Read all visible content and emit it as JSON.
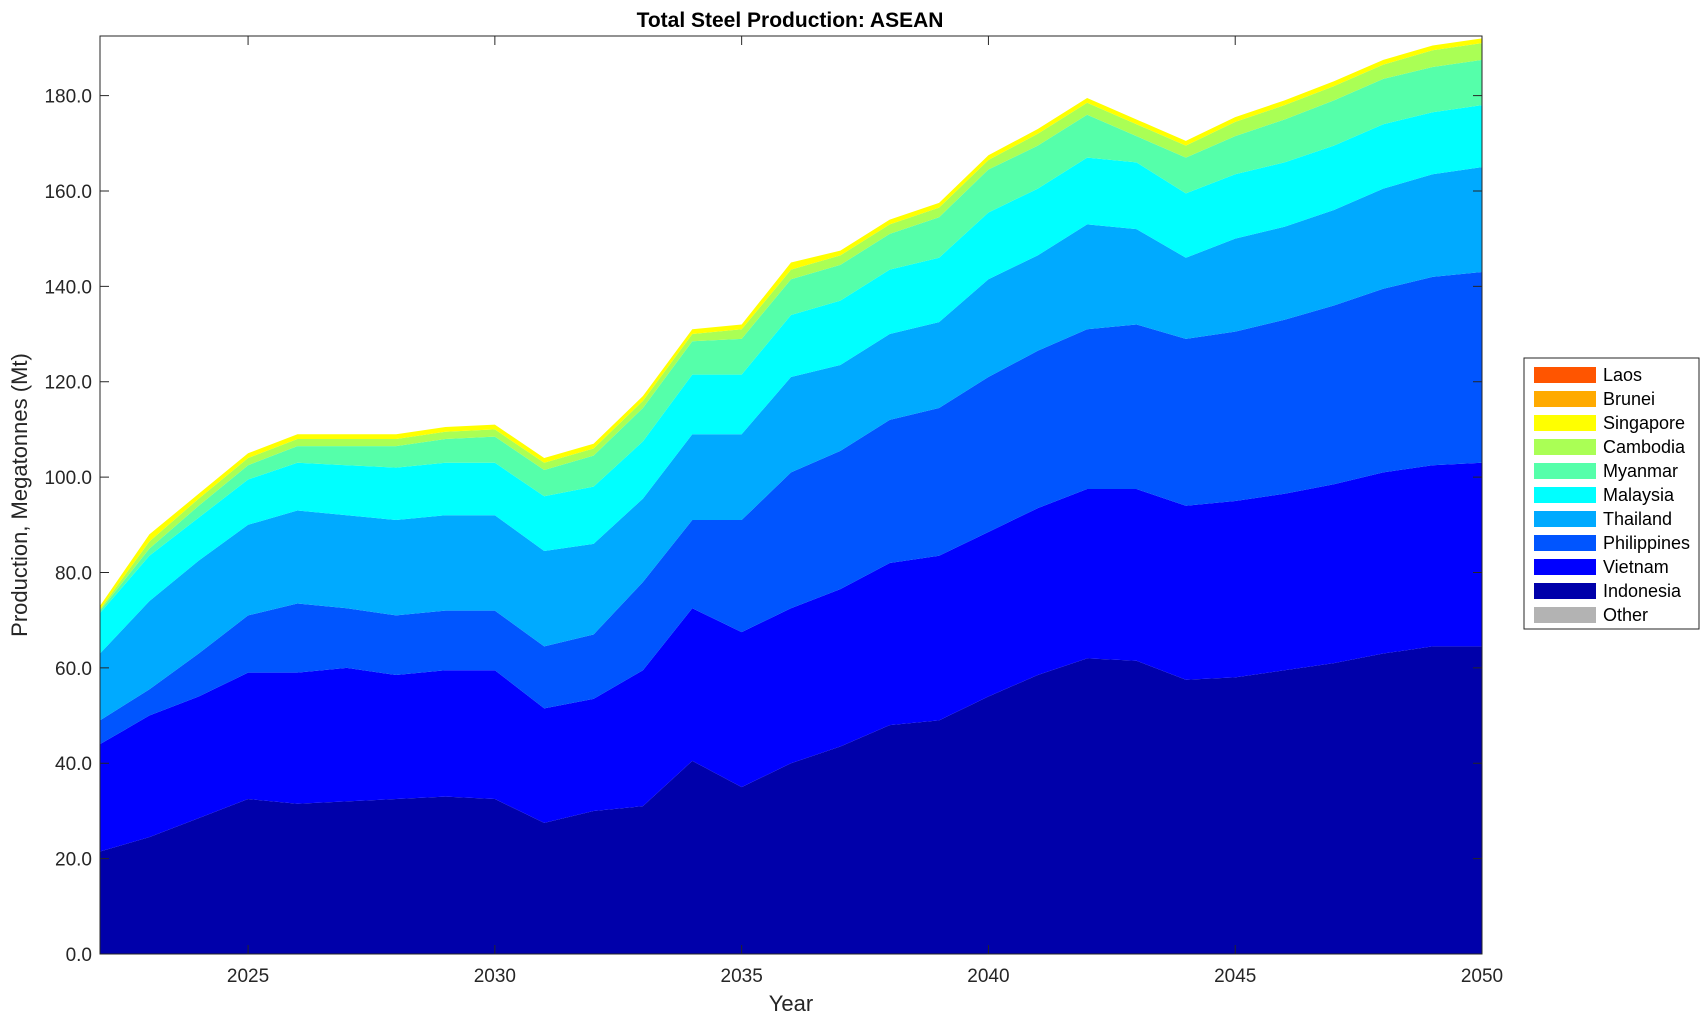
{
  "chart_data": {
    "type": "area",
    "stacked": true,
    "title": "Total Steel Production: ASEAN",
    "xlabel": "Year",
    "ylabel": "Production, Megatonnes (Mt)",
    "xlim": [
      2022,
      2050
    ],
    "ylim": [
      0,
      192.5
    ],
    "xticks": [
      "2025",
      "2030",
      "2035",
      "2040",
      "2045",
      "2050"
    ],
    "xtick_values": [
      2025,
      2030,
      2035,
      2040,
      2045,
      2050
    ],
    "yticks": [
      "0.0",
      "20.0",
      "40.0",
      "60.0",
      "80.0",
      "100.0",
      "120.0",
      "140.0",
      "160.0",
      "180.0"
    ],
    "ytick_values": [
      0,
      20,
      40,
      60,
      80,
      100,
      120,
      140,
      160,
      180
    ],
    "grid": false,
    "legend_position": "right",
    "legend_order": [
      "Laos",
      "Brunei",
      "Singapore",
      "Cambodia",
      "Myanmar",
      "Malaysia",
      "Thailand",
      "Philippines",
      "Vietnam",
      "Indonesia",
      "Other"
    ],
    "x": [
      2022,
      2023,
      2024,
      2025,
      2026,
      2027,
      2028,
      2029,
      2030,
      2031,
      2032,
      2033,
      2034,
      2035,
      2036,
      2037,
      2038,
      2039,
      2040,
      2041,
      2042,
      2043,
      2044,
      2045,
      2046,
      2047,
      2048,
      2049,
      2050
    ],
    "series": [
      {
        "name": "Other",
        "color": "#b3b3b3",
        "values": [
          0,
          0,
          0,
          0,
          0,
          0,
          0,
          0,
          0,
          0,
          0,
          0,
          0,
          0,
          0,
          0,
          0,
          0,
          0,
          0,
          0,
          0,
          0,
          0,
          0,
          0,
          0,
          0,
          0
        ]
      },
      {
        "name": "Indonesia",
        "color": "#0000aa",
        "values": [
          21.5,
          24.5,
          28.5,
          32.5,
          31.5,
          32.0,
          32.5,
          33.0,
          32.5,
          27.5,
          30.0,
          31.0,
          40.5,
          35.0,
          40.0,
          43.5,
          48.0,
          49.0,
          54.0,
          58.5,
          62.0,
          61.5,
          57.5,
          58.0,
          59.5,
          61.0,
          63.0,
          64.5,
          64.5
        ]
      },
      {
        "name": "Vietnam",
        "color": "#0000ff",
        "values": [
          22.5,
          25.5,
          25.5,
          26.5,
          27.5,
          28.0,
          26.0,
          26.5,
          27.0,
          24.0,
          23.5,
          28.5,
          32.0,
          32.5,
          32.5,
          33.0,
          34.0,
          34.5,
          34.5,
          35.0,
          35.5,
          36.0,
          36.5,
          37.0,
          37.0,
          37.5,
          38.0,
          38.0,
          38.5
        ]
      },
      {
        "name": "Philippines",
        "color": "#0055ff",
        "values": [
          5.0,
          5.5,
          9.0,
          12.0,
          14.5,
          12.5,
          12.5,
          12.5,
          12.5,
          13.0,
          13.5,
          18.5,
          18.5,
          23.5,
          28.5,
          29.0,
          30.0,
          31.0,
          32.5,
          33.0,
          33.5,
          34.5,
          35.0,
          35.5,
          36.5,
          37.5,
          38.5,
          39.5,
          40.0
        ]
      },
      {
        "name": "Thailand",
        "color": "#00aaff",
        "values": [
          14.0,
          18.5,
          19.5,
          19.0,
          19.5,
          19.5,
          20.0,
          20.0,
          20.0,
          20.0,
          19.0,
          17.5,
          18.0,
          18.0,
          20.0,
          18.0,
          18.0,
          18.0,
          20.5,
          20.0,
          22.0,
          20.0,
          17.0,
          19.5,
          19.5,
          20.0,
          21.0,
          21.5,
          22.0
        ]
      },
      {
        "name": "Malaysia",
        "color": "#00ffff",
        "values": [
          8.5,
          9.5,
          9.0,
          9.5,
          10.0,
          10.5,
          11.0,
          11.0,
          11.0,
          11.5,
          12.0,
          12.0,
          12.5,
          12.5,
          13.0,
          13.5,
          13.5,
          13.5,
          14.0,
          14.0,
          14.0,
          14.0,
          13.5,
          13.5,
          13.5,
          13.5,
          13.5,
          13.0,
          13.0
        ]
      },
      {
        "name": "Myanmar",
        "color": "#55ffaa",
        "values": [
          0.5,
          1.5,
          2.5,
          3.0,
          3.5,
          4.0,
          4.5,
          5.0,
          5.5,
          5.5,
          6.5,
          7.0,
          7.0,
          7.5,
          7.5,
          7.5,
          7.5,
          8.5,
          9.0,
          9.0,
          9.0,
          5.5,
          7.5,
          8.0,
          9.0,
          9.5,
          9.5,
          9.5,
          9.5
        ]
      },
      {
        "name": "Cambodia",
        "color": "#aaff55",
        "values": [
          0.3,
          1.5,
          1.5,
          1.5,
          1.5,
          1.5,
          1.5,
          1.5,
          1.5,
          1.5,
          1.5,
          1.5,
          1.5,
          2.0,
          2.0,
          2.0,
          2.0,
          2.0,
          2.0,
          2.5,
          2.5,
          2.5,
          2.5,
          3.0,
          3.0,
          3.0,
          3.0,
          3.5,
          3.5
        ]
      },
      {
        "name": "Singapore",
        "color": "#ffff00",
        "values": [
          0.7,
          1.5,
          1.0,
          1.0,
          1.0,
          1.0,
          1.0,
          1.0,
          1.0,
          1.0,
          1.0,
          1.0,
          1.0,
          1.0,
          1.5,
          1.0,
          1.0,
          1.0,
          1.0,
          1.0,
          1.0,
          1.0,
          1.0,
          1.0,
          1.0,
          1.0,
          1.0,
          1.0,
          1.0
        ]
      },
      {
        "name": "Brunei",
        "color": "#ffaa00",
        "values": [
          0,
          0,
          0,
          0,
          0,
          0,
          0,
          0,
          0,
          0,
          0,
          0,
          0,
          0,
          0,
          0,
          0,
          0,
          0,
          0,
          0,
          0,
          0,
          0,
          0,
          0,
          0,
          0,
          0
        ]
      },
      {
        "name": "Laos",
        "color": "#ff5500",
        "values": [
          0,
          0,
          0,
          0,
          0,
          0,
          0,
          0,
          0,
          0,
          0,
          0,
          0,
          0,
          0,
          0,
          0,
          0,
          0,
          0,
          0,
          0,
          0,
          0,
          0,
          0,
          0,
          0,
          0
        ]
      }
    ]
  }
}
